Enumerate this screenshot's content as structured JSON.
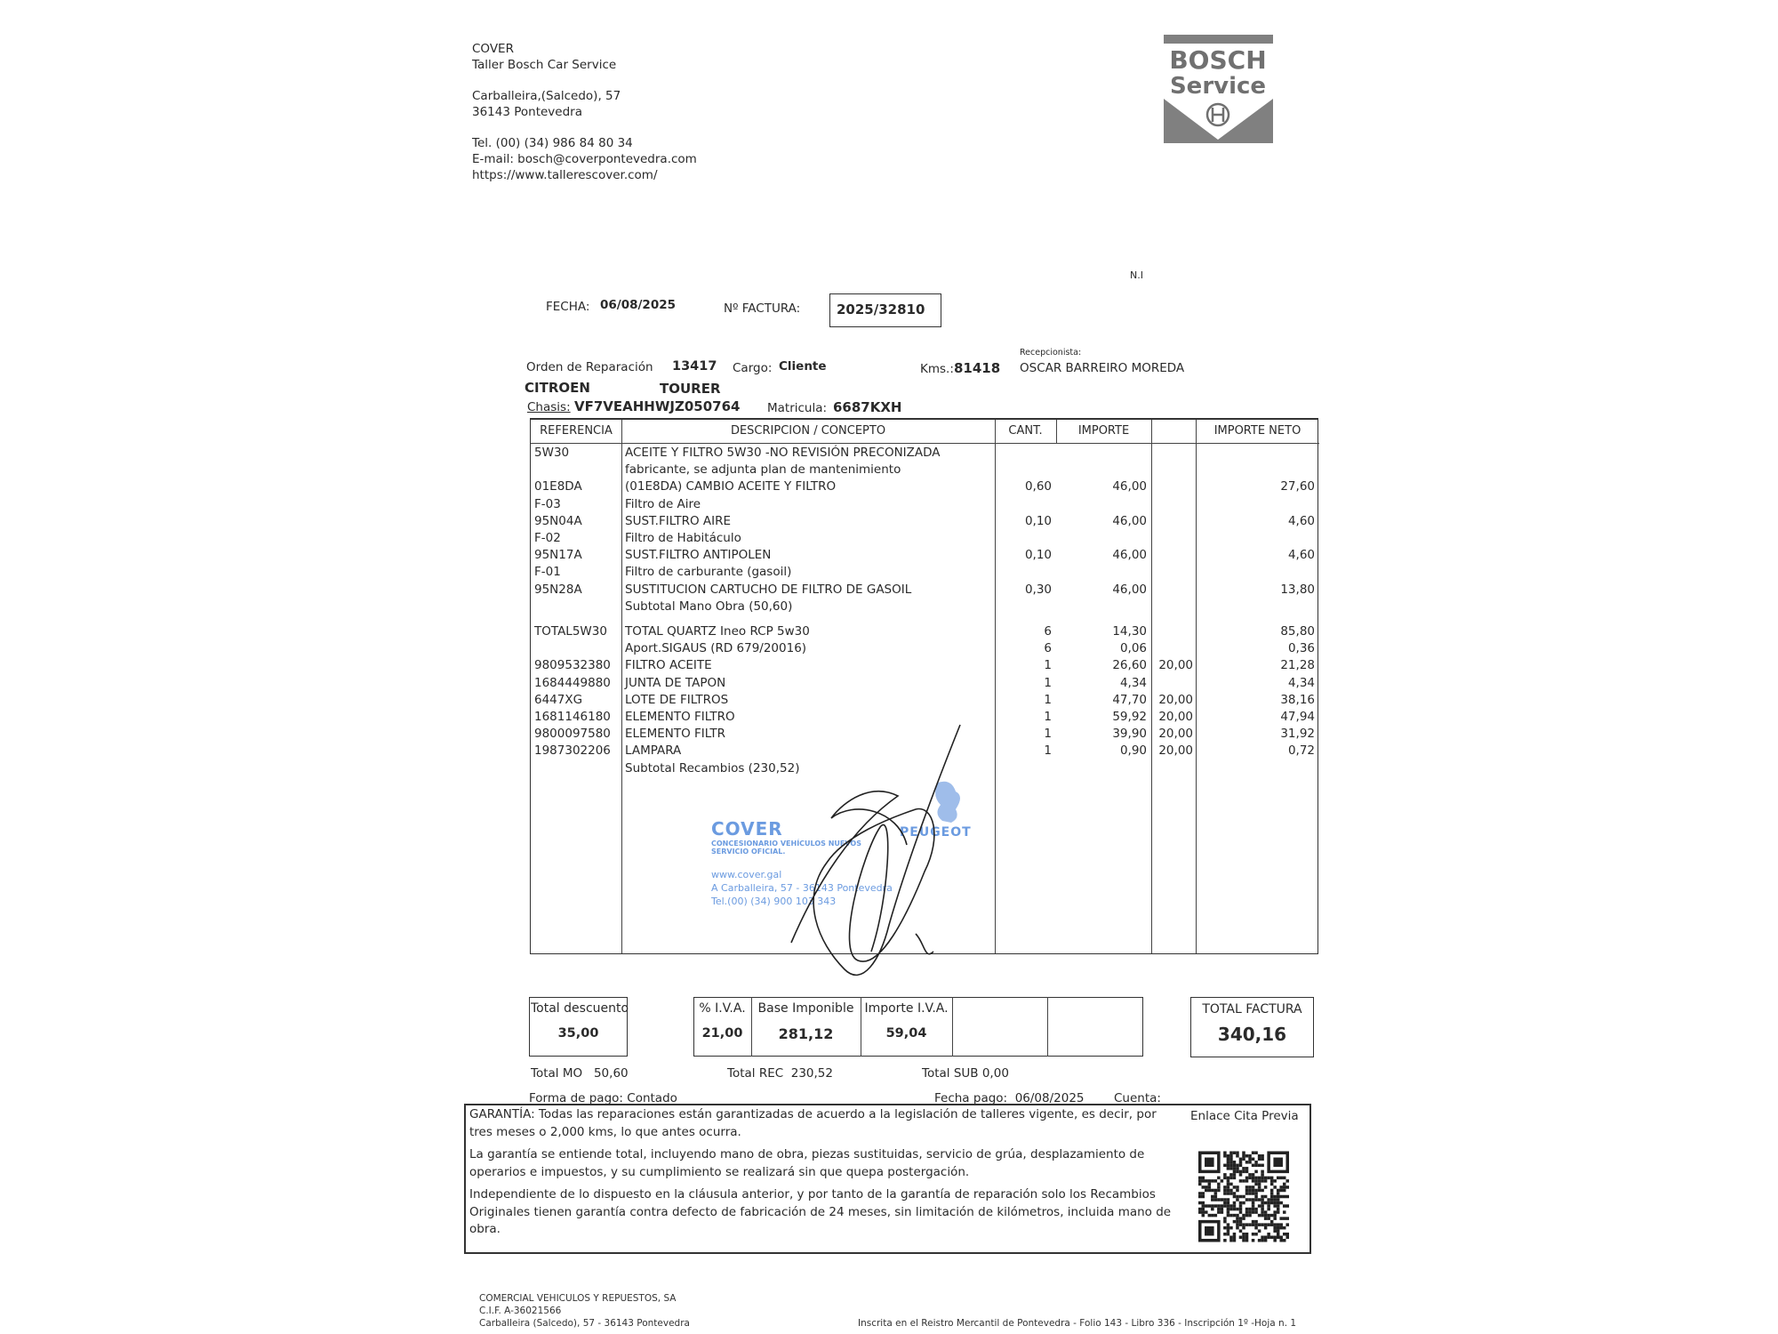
{
  "company": {
    "name": "COVER",
    "subtitle": "Taller Bosch Car Service",
    "address1": "Carballeira,(Salcedo), 57",
    "address2": "36143 Pontevedra",
    "tel": "Tel. (00) (34) 986 84 80 34",
    "email": "E-mail: bosch@coverpontevedra.com",
    "web": "https://www.tallerescover.com/"
  },
  "logo": {
    "line1": "BOSCH",
    "line2": "Service",
    "color": "#808080"
  },
  "ni": "N.I",
  "invoice": {
    "fecha_label": "FECHA:",
    "fecha": "06/08/2025",
    "numero_label": "Nº FACTURA:",
    "numero": "2025/32810"
  },
  "order": {
    "orden_label": "Orden de Reparación",
    "orden": "13417",
    "cargo_label": "Cargo:",
    "cargo": "Cliente",
    "kms_label": "Kms.:",
    "kms": "81418",
    "recepcionista_label": "Recepcionista:",
    "recepcionista": "OSCAR BARREIRO MOREDA",
    "marca": "CITROEN",
    "modelo": "TOURER",
    "chasis_label": "Chasis:",
    "chasis": "VF7VEAHHWJZ050764",
    "matricula_label": "Matricula:",
    "matricula": "6687KXH"
  },
  "table": {
    "headers": {
      "ref": "REFERENCIA",
      "desc": "DESCRIPCION / CONCEPTO",
      "cant": "CANT.",
      "importe": "IMPORTE",
      "dto": "",
      "neto": "IMPORTE NETO"
    },
    "labor_lines": [
      {
        "ref": "5W30",
        "desc": "ACEITE Y FILTRO 5W30 -NO REVISIÓN PRECONIZADA",
        "cant": "",
        "importe": "",
        "dto": "",
        "neto": ""
      },
      {
        "ref": "",
        "desc": "fabricante, se adjunta plan de mantenimiento",
        "cant": "",
        "importe": "",
        "dto": "",
        "neto": ""
      },
      {
        "ref": "01E8DA",
        "desc": "(01E8DA) CAMBIO ACEITE Y FILTRO",
        "cant": "0,60",
        "importe": "46,00",
        "dto": "",
        "neto": "27,60"
      },
      {
        "ref": "F-03",
        "desc": "Filtro de Aire",
        "cant": "",
        "importe": "",
        "dto": "",
        "neto": ""
      },
      {
        "ref": "95N04A",
        "desc": "SUST.FILTRO AIRE",
        "cant": "0,10",
        "importe": "46,00",
        "dto": "",
        "neto": "4,60"
      },
      {
        "ref": "F-02",
        "desc": "Filtro de Habitáculo",
        "cant": "",
        "importe": "",
        "dto": "",
        "neto": ""
      },
      {
        "ref": "95N17A",
        "desc": "SUST.FILTRO ANTIPOLEN",
        "cant": "0,10",
        "importe": "46,00",
        "dto": "",
        "neto": "4,60"
      },
      {
        "ref": "F-01",
        "desc": "Filtro de carburante (gasoil)",
        "cant": "",
        "importe": "",
        "dto": "",
        "neto": ""
      },
      {
        "ref": "95N28A",
        "desc": "SUSTITUCION CARTUCHO DE FILTRO DE GASOIL",
        "cant": "0,30",
        "importe": "46,00",
        "dto": "",
        "neto": "13,80"
      },
      {
        "ref": "",
        "desc": "Subtotal Mano Obra  (50,60)",
        "cant": "",
        "importe": "",
        "dto": "",
        "neto": ""
      }
    ],
    "parts_lines": [
      {
        "ref": "TOTAL5W30",
        "desc": "TOTAL QUARTZ Ineo RCP 5w30",
        "cant": "6",
        "importe": "14,30",
        "dto": "",
        "neto": "85,80"
      },
      {
        "ref": "",
        "desc": "Aport.SIGAUS (RD 679/20016)",
        "cant": "6",
        "importe": "0,06",
        "dto": "",
        "neto": "0,36"
      },
      {
        "ref": "9809532380",
        "desc": "FILTRO ACEITE",
        "cant": "1",
        "importe": "26,60",
        "dto": "20,00",
        "neto": "21,28"
      },
      {
        "ref": "1684449880",
        "desc": "JUNTA DE TAPON",
        "cant": "1",
        "importe": "4,34",
        "dto": "",
        "neto": "4,34"
      },
      {
        "ref": "6447XG",
        "desc": "LOTE DE FILTROS",
        "cant": "1",
        "importe": "47,70",
        "dto": "20,00",
        "neto": "38,16"
      },
      {
        "ref": "1681146180",
        "desc": "ELEMENTO FILTRO",
        "cant": "1",
        "importe": "59,92",
        "dto": "20,00",
        "neto": "47,94"
      },
      {
        "ref": "9800097580",
        "desc": "ELEMENTO FILTR",
        "cant": "1",
        "importe": "39,90",
        "dto": "20,00",
        "neto": "31,92"
      },
      {
        "ref": "1987302206",
        "desc": "LAMPARA",
        "cant": "1",
        "importe": "0,90",
        "dto": "20,00",
        "neto": "0,72"
      },
      {
        "ref": "",
        "desc": "Subtotal Recambios  (230,52)",
        "cant": "",
        "importe": "",
        "dto": "",
        "neto": ""
      }
    ]
  },
  "stamp": {
    "name": "COVER",
    "line1": "CONCESIONARIO VEHÍCULOS NUEVOS",
    "line2": "SERVICIO OFICIAL.",
    "web": "www.cover.gal",
    "address": "A Carballeira, 57 - 36143 Pontevedra",
    "tel": "Tel.(00) (34) 900 103 343",
    "brand": "PEUGEOT",
    "color": "#6b9be0"
  },
  "totals": {
    "descuento_label": "Total descuento",
    "descuento": "35,00",
    "iva_pct_label": "% I.V.A.",
    "iva_pct": "21,00",
    "base_label": "Base Imponible",
    "base": "281,12",
    "iva_label": "Importe I.V.A.",
    "iva": "59,04",
    "total_label": "TOTAL FACTURA",
    "total": "340,16",
    "mo_label": "Total MO",
    "mo": "50,60",
    "rec_label": "Total REC",
    "rec": "230,52",
    "sub_label": "Total  SUB",
    "sub": "0,00"
  },
  "payment": {
    "forma_label": "Forma de pago:",
    "forma": "Contado",
    "fecha_label": "Fecha pago:",
    "fecha": "06/08/2025",
    "cuenta_label": "Cuenta:"
  },
  "guarantee": {
    "p1": "GARANTÍA: Todas las reparaciones están garantizadas de acuerdo a la legislación de talleres vigente, es decir, por tres meses o 2,000 kms, lo que antes ocurra.",
    "p2": "La garantía se entiende total, incluyendo mano de obra, piezas sustituidas, servicio de grúa, desplazamiento de operarios e impuestos, y su cumplimiento se realizará sin que quepa postergación.",
    "p3": "Independiente de lo dispuesto en la cláusula anterior, y por tanto de la garantía de reparación solo los Recambios Originales tienen garantía contra defecto de fabricación de 24 meses, sin limitación de kilómetros, incluida mano de obra.",
    "qr_label": "Enlace Cita Previa"
  },
  "footer": {
    "company": "COMERCIAL VEHICULOS Y REPUESTOS, SA",
    "cif": "C.I.F. A-36021566",
    "address": "Carballeira (Salcedo), 57 - 36143 Pontevedra",
    "registry": "Inscrita en el Reistro Mercantil de Pontevedra - Folio 143 - Libro 336 - Inscripción 1º -Hoja n. 1"
  }
}
